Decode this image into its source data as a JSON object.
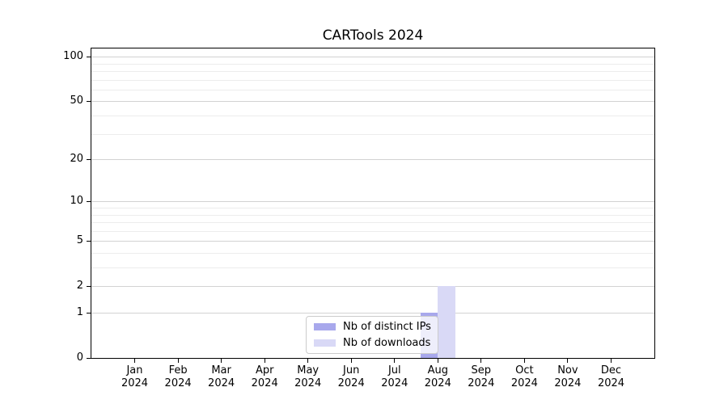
{
  "title": "CARTools 2024",
  "chart_data": {
    "type": "bar",
    "title": "CARTools 2024",
    "categories": [
      "Jan 2024",
      "Feb 2024",
      "Mar 2024",
      "Apr 2024",
      "May 2024",
      "Jun 2024",
      "Jul 2024",
      "Aug 2024",
      "Sep 2024",
      "Oct 2024",
      "Nov 2024",
      "Dec 2024"
    ],
    "series": [
      {
        "name": "Nb of distinct IPs",
        "color": "#a8a8ec",
        "values": [
          0,
          0,
          0,
          0,
          0,
          0,
          0,
          1,
          0,
          0,
          0,
          0
        ]
      },
      {
        "name": "Nb of downloads",
        "color": "#d9d9f6",
        "values": [
          0,
          0,
          0,
          0,
          0,
          0,
          0,
          2,
          0,
          0,
          0,
          0
        ]
      }
    ],
    "xlabel": "",
    "ylabel": "",
    "y_scale": "log1p",
    "ylim": [
      0,
      113.5
    ],
    "y_ticks": [
      0,
      1,
      2,
      5,
      10,
      20,
      50,
      100
    ],
    "y_minor_gridlines": [
      3,
      4,
      6,
      7,
      8,
      9,
      30,
      40,
      60,
      70,
      80,
      90
    ],
    "grid": "horizontal-only",
    "legend_position": "lower-center"
  },
  "legend": {
    "items": [
      {
        "label": "Nb of distinct IPs",
        "color": "#a8a8ec"
      },
      {
        "label": "Nb of downloads",
        "color": "#d9d9f6"
      }
    ]
  }
}
